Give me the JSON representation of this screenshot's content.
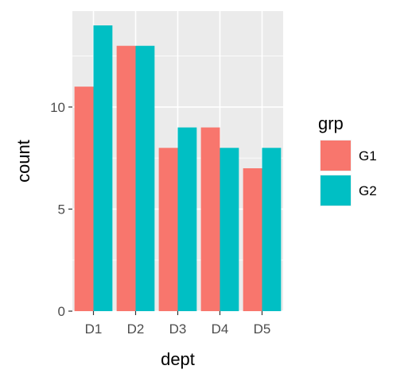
{
  "chart_data": {
    "type": "bar",
    "categories": [
      "D1",
      "D2",
      "D3",
      "D4",
      "D5"
    ],
    "series": [
      {
        "name": "G1",
        "values": [
          11,
          13,
          8,
          9,
          7
        ],
        "color": "#F8766D"
      },
      {
        "name": "G2",
        "values": [
          14,
          13,
          9,
          8,
          8
        ],
        "color": "#00BFC4"
      }
    ],
    "xlabel": "dept",
    "ylabel": "count",
    "ylim": [
      0,
      14.7
    ],
    "yticks": [
      0,
      5,
      10
    ],
    "legend": {
      "title": "grp",
      "position": "right"
    },
    "grid": true,
    "panel_background": "#EBEBEB",
    "grid_color": "#FFFFFF"
  }
}
